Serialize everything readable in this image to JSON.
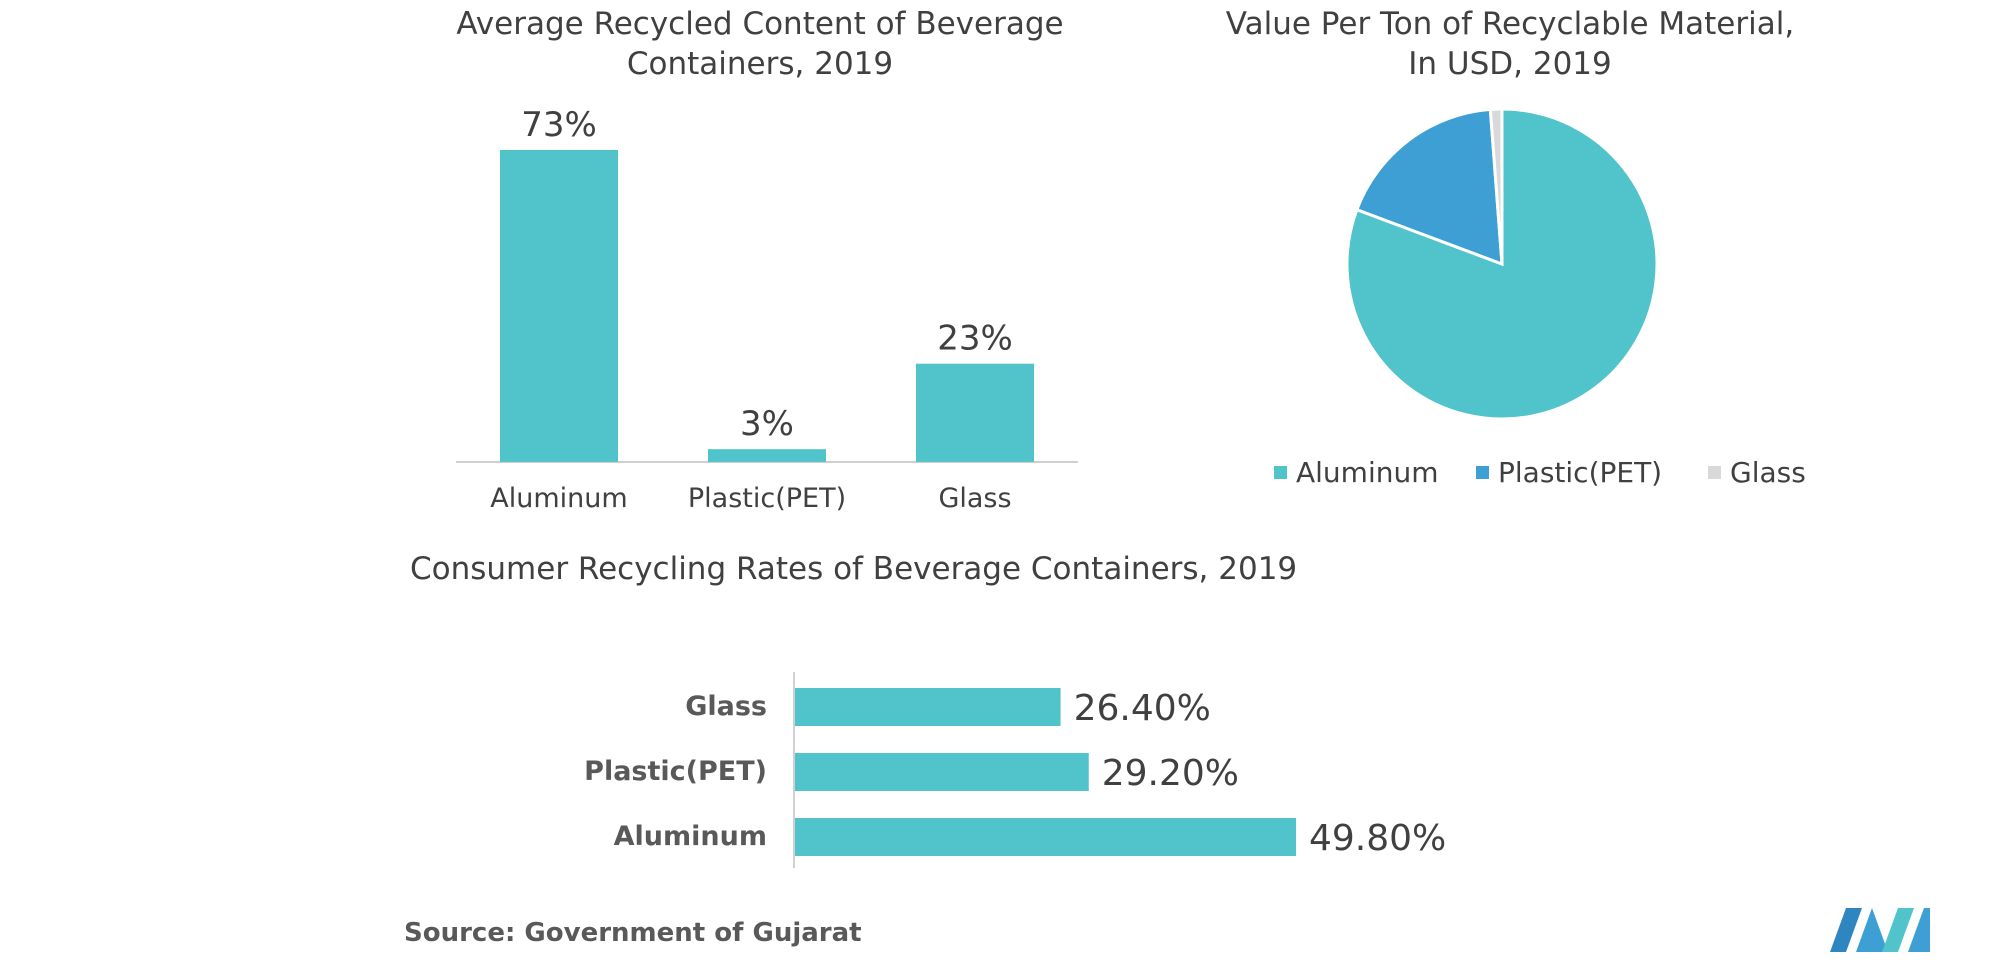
{
  "colors": {
    "teal": "#51C3CA",
    "blue": "#3D9FD3",
    "light_gray": "#D9D9D9",
    "axis": "#D0D0D0",
    "text": "#404040"
  },
  "source_text": "Source: Government of Gujarat",
  "logo_icon": "mordor-intelligence-logo",
  "chart_data": [
    {
      "type": "bar",
      "title_lines": [
        "Average Recycled Content of Beverage",
        "Containers, 2019"
      ],
      "categories": [
        "Aluminum",
        "Plastic(PET)",
        "Glass"
      ],
      "values": [
        73,
        3,
        23
      ],
      "data_labels": [
        "73%",
        "3%",
        "23%"
      ],
      "ylim": [
        0,
        73
      ],
      "grid": false,
      "color": "#51C3CA"
    },
    {
      "type": "pie",
      "title_lines": [
        "Value Per Ton of Recyclable Material,",
        "In USD, 2019"
      ],
      "labels": [
        "Aluminum",
        "Plastic(PET)",
        "Glass"
      ],
      "values": [
        80.7,
        18.1,
        1.2
      ],
      "colors": [
        "#51C3CA",
        "#3D9FD3",
        "#D9D9D9"
      ],
      "legend_position": "bottom"
    },
    {
      "type": "bar",
      "orientation": "horizontal",
      "title": "Consumer Recycling Rates of Beverage Containers, 2019",
      "categories": [
        "Glass",
        "Plastic(PET)",
        "Aluminum"
      ],
      "values": [
        26.4,
        29.2,
        49.8
      ],
      "data_labels": [
        "26.40%",
        "29.20%",
        "49.80%"
      ],
      "xlim": [
        0,
        70
      ],
      "grid": false,
      "color": "#51C3CA"
    }
  ]
}
